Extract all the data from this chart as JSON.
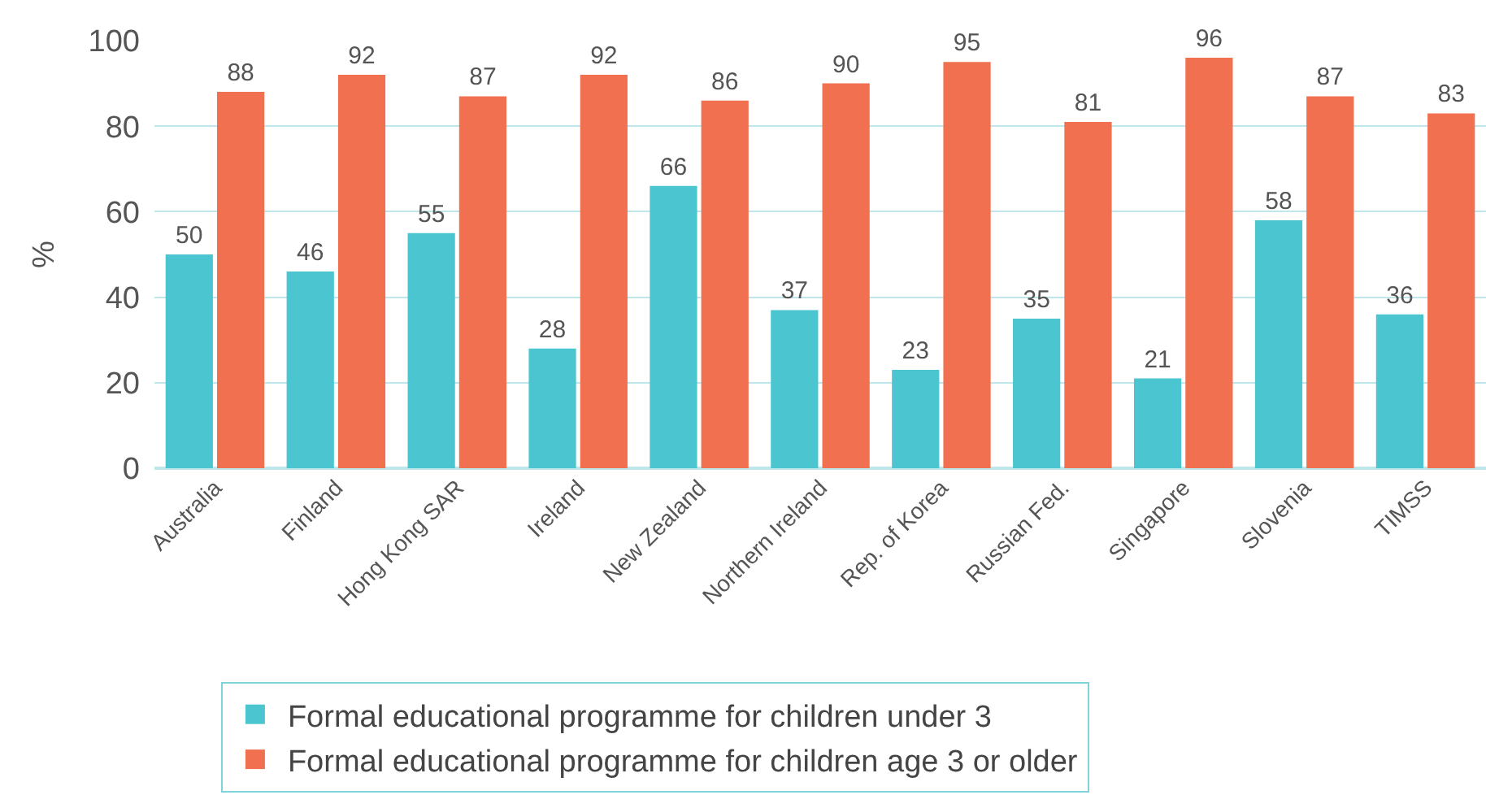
{
  "chart_data": {
    "type": "bar",
    "ylabel": "%",
    "categories": [
      "Australia",
      "Finland",
      "Hong Kong SAR",
      "Ireland",
      "New Zealand",
      "Northern Ireland",
      "Rep. of Korea",
      "Russian Fed.",
      "Singapore",
      "Slovenia",
      "TIMSS"
    ],
    "series": [
      {
        "name": "Formal educational programme for children under 3",
        "color": "#4bc6d0",
        "values": [
          50,
          46,
          55,
          28,
          66,
          37,
          23,
          35,
          21,
          58,
          36
        ]
      },
      {
        "name": "Formal educational programme for children age 3 or older",
        "color": "#f07050",
        "values": [
          88,
          92,
          87,
          92,
          86,
          90,
          95,
          81,
          96,
          87,
          83
        ]
      }
    ],
    "ylim": [
      0,
      100
    ],
    "yticks": [
      0,
      20,
      40,
      60,
      80,
      100
    ],
    "grid": "y",
    "legend": "bottom",
    "data_labels": true
  }
}
